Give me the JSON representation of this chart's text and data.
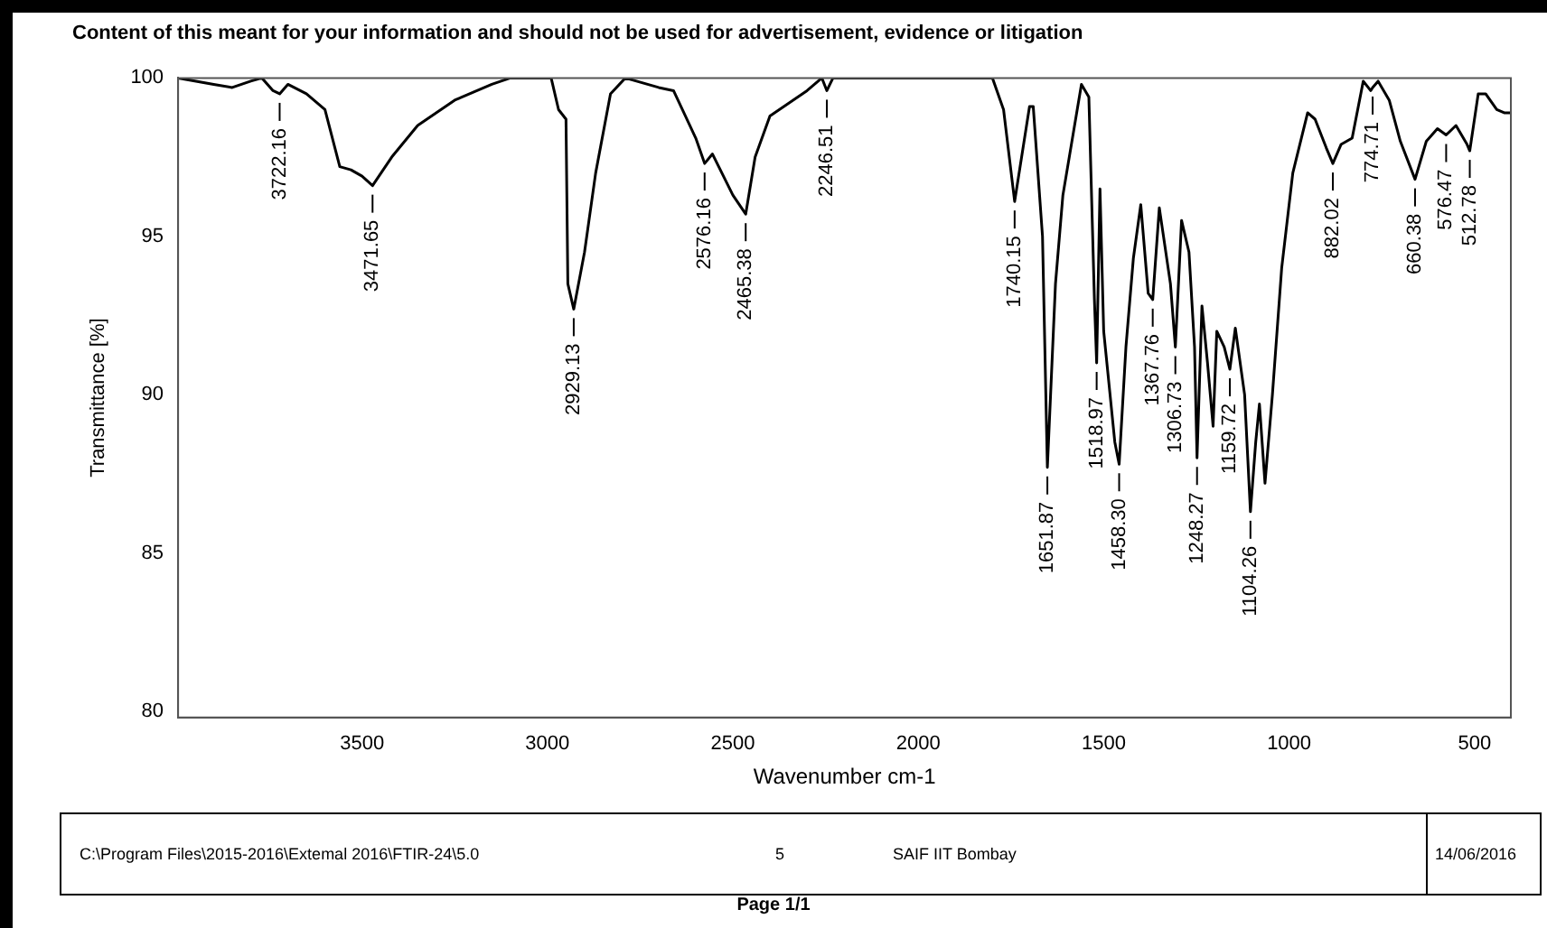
{
  "chart_data": {
    "type": "line",
    "title": "Content of this meant for your information and should not be used for advertisement, evidence or litigation",
    "xlabel": "Wavenumber cm-1",
    "ylabel": "Transmittance [%]",
    "xlim": [
      3996,
      402
    ],
    "ylim": [
      79.8,
      100
    ],
    "xticks": [
      3500,
      3000,
      2500,
      2000,
      1500,
      1000,
      500
    ],
    "yticks": [
      80,
      85,
      90,
      95,
      100
    ],
    "grid": false,
    "legend": false,
    "marker": "none",
    "line_style": "solid",
    "series": [
      {
        "color": "#000000",
        "x": [
          3996,
          3900,
          3850,
          3800,
          3770,
          3740,
          3722.16,
          3700,
          3650,
          3600,
          3560,
          3530,
          3500,
          3471.65,
          3420,
          3350,
          3250,
          3150,
          3100,
          2990,
          2970,
          2950,
          2945,
          2929.13,
          2900,
          2870,
          2830,
          2790,
          2700,
          2660,
          2600,
          2576.16,
          2555,
          2500,
          2465.38,
          2440,
          2400,
          2300,
          2260,
          2246.51,
          2230,
          2000,
          1800,
          1770,
          1740.15,
          1700,
          1690,
          1665,
          1651.87,
          1630,
          1610,
          1560,
          1540,
          1525,
          1518.97,
          1510,
          1500,
          1470,
          1458.3,
          1440,
          1420,
          1400,
          1380,
          1367.76,
          1350,
          1320,
          1306.73,
          1290,
          1270,
          1255,
          1248.27,
          1235,
          1220,
          1205,
          1195,
          1175,
          1159.72,
          1145,
          1120,
          1104.26,
          1090,
          1080,
          1065,
          1045,
          1020,
          990,
          950,
          930,
          900,
          882.02,
          860,
          830,
          800,
          780,
          774.71,
          760,
          730,
          700,
          660.38,
          630,
          600,
          576.47,
          550,
          520,
          512.78,
          490,
          470,
          440,
          420,
          402
        ],
        "values": [
          100,
          99.8,
          99.7,
          99.9,
          100,
          99.6,
          99.5,
          99.8,
          99.5,
          99,
          97.2,
          97.1,
          96.9,
          96.6,
          97.5,
          98.5,
          99.3,
          99.8,
          100,
          100,
          99.0,
          98.7,
          93.5,
          92.7,
          94.5,
          97,
          99.5,
          100,
          99.7,
          99.6,
          98.1,
          97.3,
          97.6,
          96.3,
          95.7,
          97.5,
          98.8,
          99.6,
          100,
          99.6,
          100,
          100,
          100,
          99,
          96.1,
          99.1,
          99.1,
          95,
          87.7,
          93.5,
          96.3,
          99.8,
          99.4,
          93,
          91,
          96.5,
          92,
          88.5,
          87.8,
          91.5,
          94.3,
          96,
          93.2,
          93,
          95.9,
          93.5,
          91.5,
          95.5,
          94.5,
          91.5,
          88,
          92.8,
          91,
          89,
          92,
          91.5,
          90.8,
          92.1,
          90,
          86.3,
          88.5,
          89.7,
          87.2,
          90,
          94,
          97,
          98.9,
          98.7,
          97.8,
          97.3,
          97.9,
          98.1,
          99.9,
          99.6,
          99.7,
          99.9,
          99.3,
          98,
          96.8,
          98,
          98.4,
          98.2,
          98.5,
          97.9,
          97.7,
          99.5,
          99.5,
          99,
          98.9,
          98.9
        ]
      }
    ],
    "annotations": [
      {
        "text": "3722.16",
        "x": 3722.16,
        "y": 99.5
      },
      {
        "text": "3471.65",
        "x": 3471.65,
        "y": 96.6
      },
      {
        "text": "2929.13",
        "x": 2929.13,
        "y": 92.7
      },
      {
        "text": "2576.16",
        "x": 2576.16,
        "y": 97.3
      },
      {
        "text": "2465.38",
        "x": 2465.38,
        "y": 95.7
      },
      {
        "text": "2246.51",
        "x": 2246.51,
        "y": 99.6
      },
      {
        "text": "1740.15",
        "x": 1740.15,
        "y": 96.1
      },
      {
        "text": "1651.87",
        "x": 1651.87,
        "y": 87.7
      },
      {
        "text": "1518.97",
        "x": 1518.97,
        "y": 91
      },
      {
        "text": "1458.30",
        "x": 1458.3,
        "y": 87.8
      },
      {
        "text": "1367.76",
        "x": 1367.76,
        "y": 93
      },
      {
        "text": "1306.73",
        "x": 1306.73,
        "y": 91.5
      },
      {
        "text": "1248.27",
        "x": 1248.27,
        "y": 88
      },
      {
        "text": "1159.72",
        "x": 1159.72,
        "y": 90.8
      },
      {
        "text": "1104.26",
        "x": 1104.26,
        "y": 86.3
      },
      {
        "text": "882.02",
        "x": 882.02,
        "y": 97.3
      },
      {
        "text": "774.71",
        "x": 774.71,
        "y": 99.7
      },
      {
        "text": "660.38",
        "x": 660.38,
        "y": 96.8
      },
      {
        "text": "576.47",
        "x": 576.47,
        "y": 98.2
      },
      {
        "text": "512.78",
        "x": 512.78,
        "y": 97.7
      },
      "C:\\Program Files\\2015-2016\\Extemal 2016\\FTIR-24\\5.0",
      "5",
      "SAIF IIT Bombay",
      "14/06/2016",
      "Page 1/1"
    ]
  }
}
